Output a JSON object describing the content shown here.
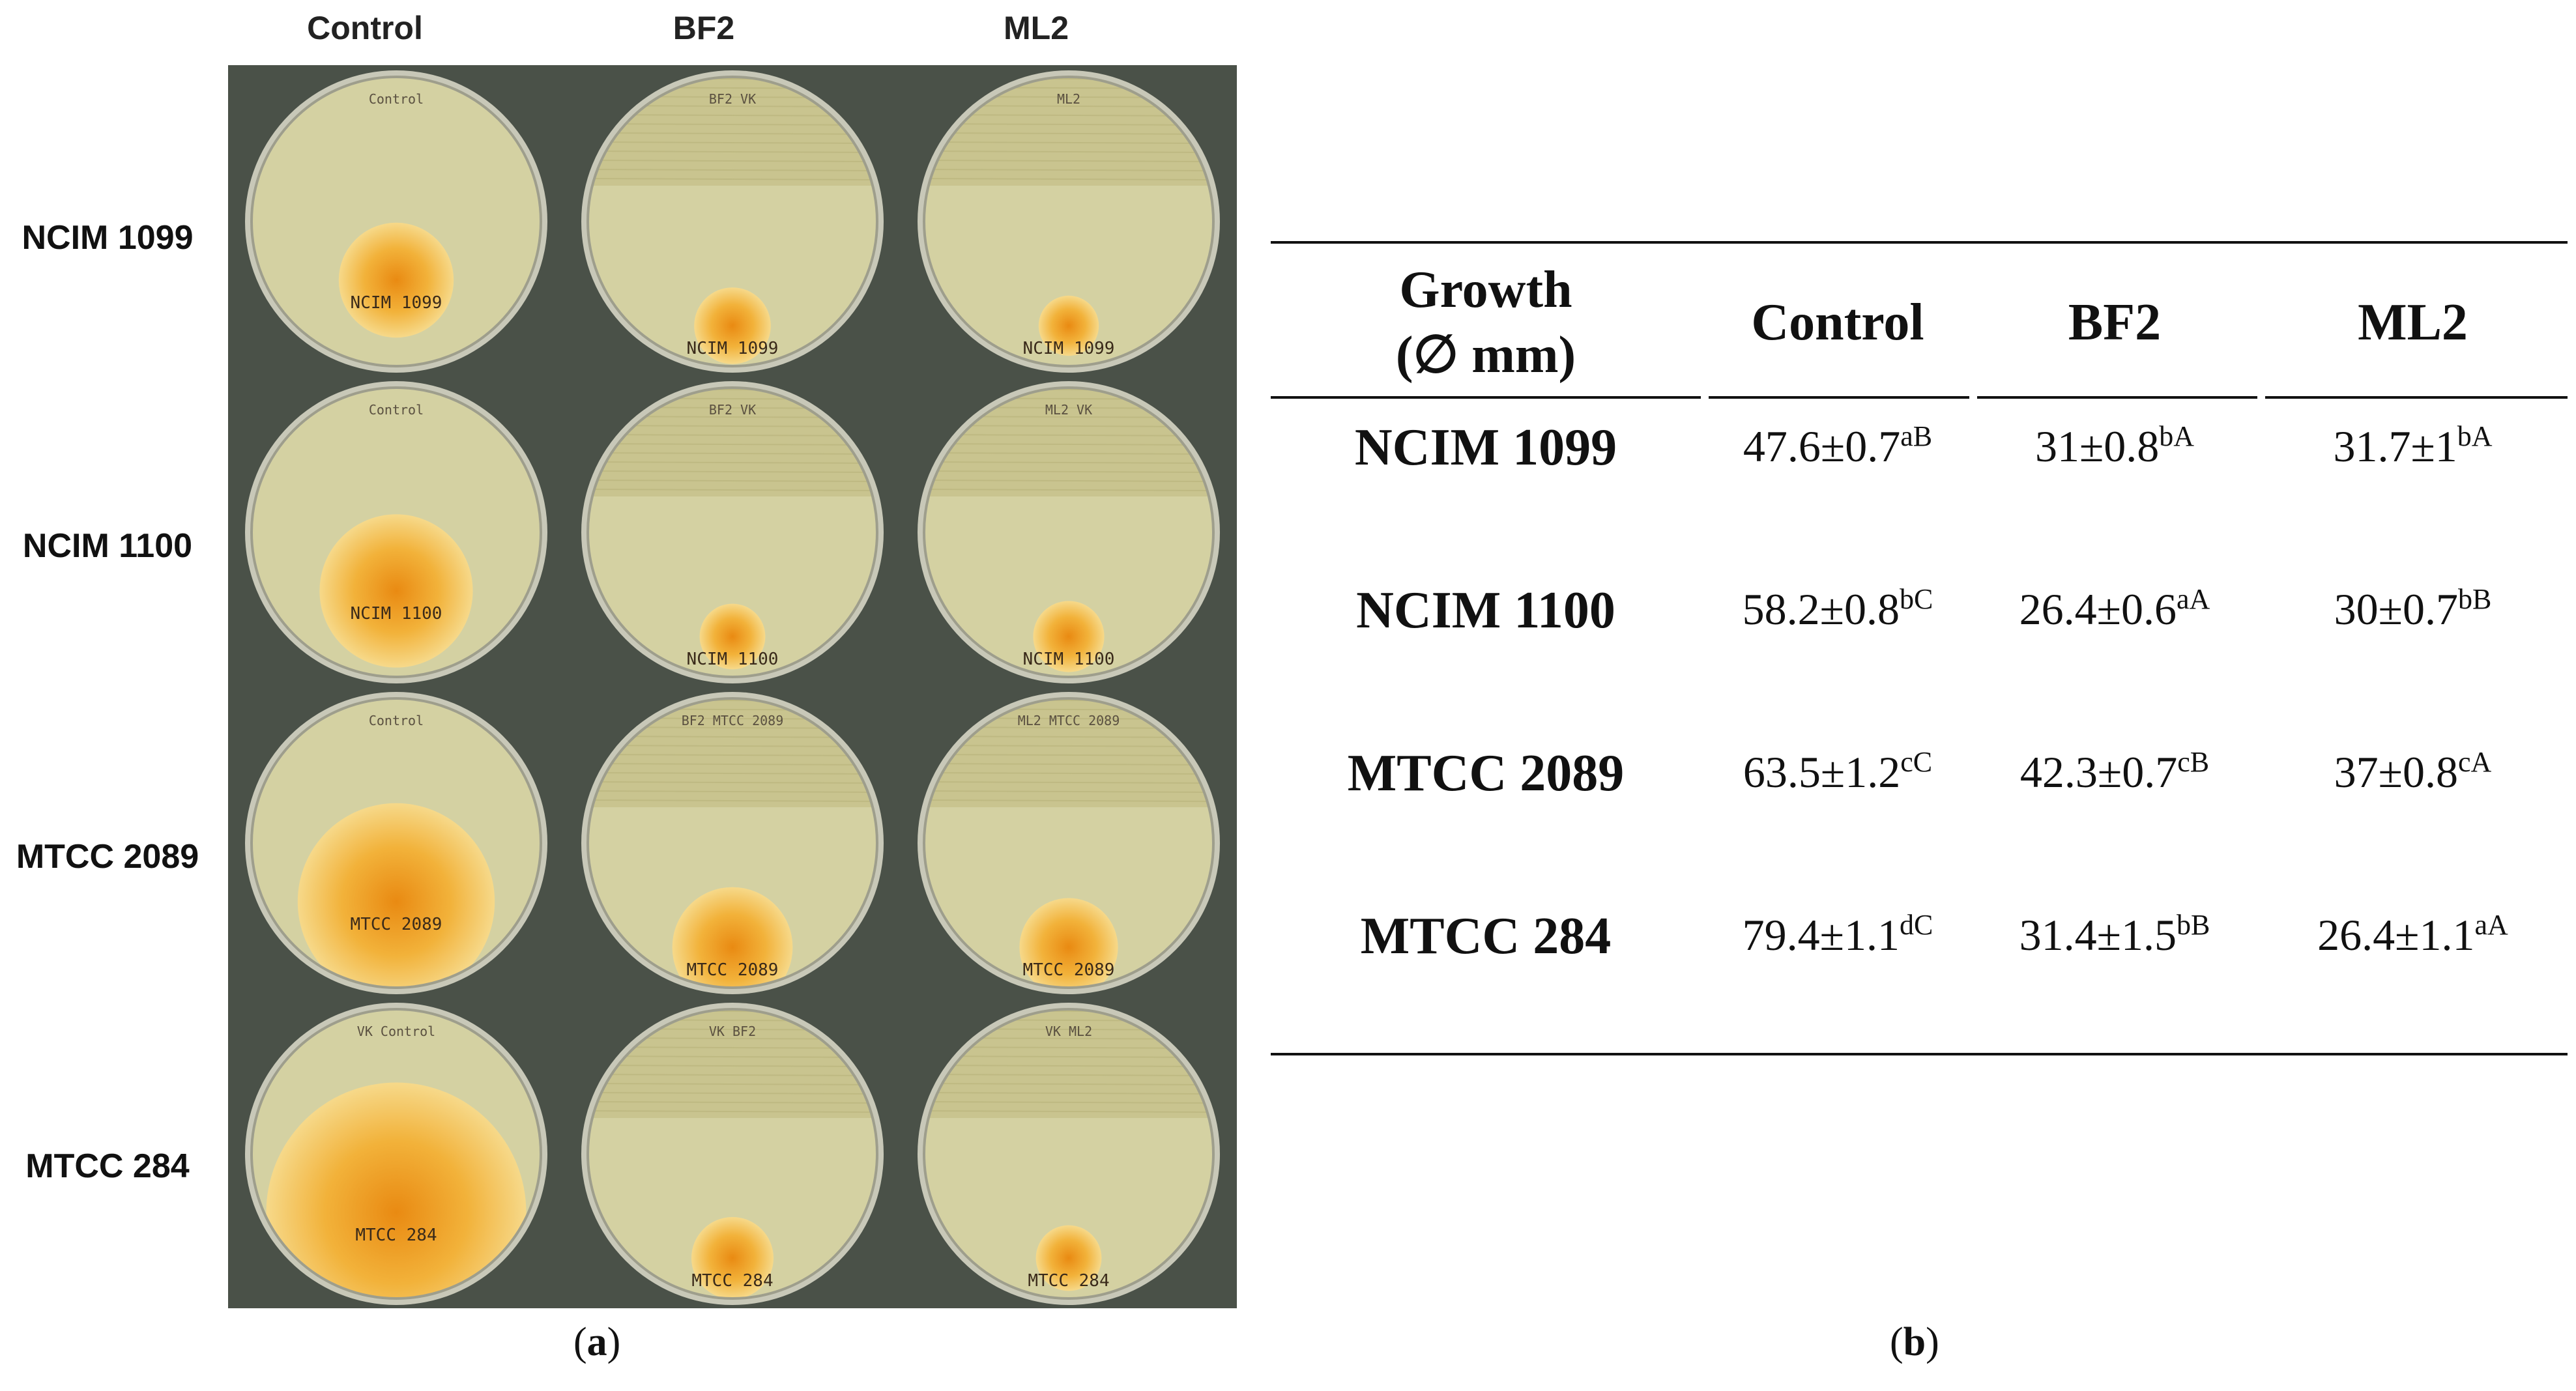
{
  "figure": {
    "panel_a": {
      "label_letter": "a",
      "column_headers": [
        "Control",
        "BF2",
        "ML2"
      ],
      "row_headers": [
        "NCIM 1099",
        "NCIM 1100",
        "MTCC 2089",
        "MTCC 284"
      ],
      "plate_labels": [
        [
          "NCIM 1099",
          "NCIM 1099",
          "NCIM 1099"
        ],
        [
          "NCIM 1100",
          "NCIM 1100",
          "NCIM 1100"
        ],
        [
          "MTCC 2089",
          "MTCC 2089",
          "MTCC 2089"
        ],
        [
          "MTCC 284",
          "MTCC 284",
          "MTCC 284"
        ]
      ],
      "plate_top_notes": [
        [
          "Control",
          "BF2 VK",
          "ML2"
        ],
        [
          "Control",
          "BF2 VK",
          "ML2 VK"
        ],
        [
          "Control",
          "BF2 MTCC 2089",
          "ML2 MTCC 2089"
        ],
        [
          "VK Control",
          "VK BF2",
          "VK ML2"
        ]
      ]
    },
    "panel_b": {
      "label_letter": "b",
      "header": {
        "growth_line1": "Growth",
        "growth_line2": "(∅ mm)",
        "columns": [
          "Control",
          "BF2",
          "ML2"
        ]
      },
      "rows": [
        {
          "strain": "NCIM 1099",
          "cells": [
            {
              "v": "47.6±0.7",
              "s": "aB"
            },
            {
              "v": "31±0.8",
              "s": "bA"
            },
            {
              "v": "31.7±1",
              "s": "bA"
            }
          ]
        },
        {
          "strain": "NCIM 1100",
          "cells": [
            {
              "v": "58.2±0.8",
              "s": "bC"
            },
            {
              "v": "26.4±0.6",
              "s": "aA"
            },
            {
              "v": "30±0.7",
              "s": "bB"
            }
          ]
        },
        {
          "strain": "MTCC 2089",
          "cells": [
            {
              "v": "63.5±1.2",
              "s": "cC"
            },
            {
              "v": "42.3±0.7",
              "s": "cB"
            },
            {
              "v": "37±0.8",
              "s": "cA"
            }
          ]
        },
        {
          "strain": "MTCC 284",
          "cells": [
            {
              "v": "79.4±1.1",
              "s": "dC"
            },
            {
              "v": "31.4±1.5",
              "s": "bB"
            },
            {
              "v": "26.4±1.1",
              "s": "aA"
            }
          ]
        }
      ]
    },
    "colors": {
      "background_dark": "#4a5148",
      "agar": "#d4d1a2",
      "fungus": "#f2b23a",
      "streak": "#c9c48f"
    }
  }
}
